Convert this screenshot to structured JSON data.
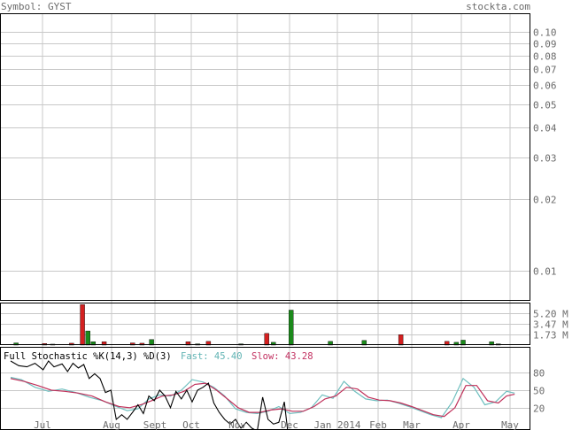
{
  "header": {
    "symbol_label": "Symbol: GYST",
    "site": "stockta.com"
  },
  "colors": {
    "grid": "#c8c8c8",
    "frame": "#000000",
    "text": "#6b6b6b",
    "fast_line": "#6fbfbf",
    "slow_line": "#c0305a",
    "k_line": "#000000",
    "vol_up": "#1b8a1b",
    "vol_down": "#d42020",
    "fast_label": "#5fb3b3",
    "slow_label": "#c23060"
  },
  "chart_data": [
    {
      "type": "line",
      "panel": "price",
      "yscale": "log",
      "ylim": [
        0.0075,
        0.12
      ],
      "y_ticks": [
        "0.10",
        "0.09",
        "0.08",
        "0.07",
        "0.06",
        "0.05",
        "0.04",
        "0.03",
        "0.02",
        "0.01"
      ],
      "x_ticks": [
        "Jul",
        "Aug",
        "Sept",
        "Oct",
        "Nov",
        "Dec",
        "Jan 2014",
        "Feb",
        "Mar",
        "Apr",
        "May"
      ],
      "grid": true
    },
    {
      "type": "bar",
      "panel": "volume",
      "y_ticks": [
        "5.20 M",
        "3.47 M",
        "1.73 M"
      ],
      "ylim": [
        0,
        6.93
      ],
      "bars": [
        {
          "x": 0.2,
          "v": 0.35,
          "dir": "up"
        },
        {
          "x": 1.25,
          "v": 0.25,
          "dir": "down"
        },
        {
          "x": 1.55,
          "v": 0.15,
          "dir": "up"
        },
        {
          "x": 2.25,
          "v": 0.3,
          "dir": "down"
        },
        {
          "x": 2.65,
          "v": 6.6,
          "dir": "down"
        },
        {
          "x": 2.85,
          "v": 2.3,
          "dir": "up"
        },
        {
          "x": 3.05,
          "v": 0.55,
          "dir": "up"
        },
        {
          "x": 3.45,
          "v": 0.55,
          "dir": "down"
        },
        {
          "x": 4.5,
          "v": 0.35,
          "dir": "down"
        },
        {
          "x": 4.85,
          "v": 0.3,
          "dir": "down"
        },
        {
          "x": 5.2,
          "v": 0.9,
          "dir": "up"
        },
        {
          "x": 6.55,
          "v": 0.55,
          "dir": "down"
        },
        {
          "x": 6.9,
          "v": 0.2,
          "dir": "up"
        },
        {
          "x": 7.3,
          "v": 0.6,
          "dir": "down"
        },
        {
          "x": 8.5,
          "v": 0.2,
          "dir": "up"
        },
        {
          "x": 9.45,
          "v": 1.9,
          "dir": "down"
        },
        {
          "x": 9.7,
          "v": 0.45,
          "dir": "up"
        },
        {
          "x": 10.35,
          "v": 5.7,
          "dir": "up"
        },
        {
          "x": 11.8,
          "v": 0.6,
          "dir": "up"
        },
        {
          "x": 13.05,
          "v": 0.75,
          "dir": "up"
        },
        {
          "x": 14.4,
          "v": 1.7,
          "dir": "down"
        },
        {
          "x": 16.1,
          "v": 0.6,
          "dir": "down"
        },
        {
          "x": 16.45,
          "v": 0.45,
          "dir": "up"
        },
        {
          "x": 16.7,
          "v": 0.8,
          "dir": "up"
        },
        {
          "x": 17.75,
          "v": 0.55,
          "dir": "up"
        },
        {
          "x": 18.0,
          "v": 0.2,
          "dir": "up"
        }
      ]
    },
    {
      "type": "line",
      "panel": "stochastic",
      "title": "Full Stochastic %K(14,3) %D(3)",
      "fast_label": "Fast: 45.40",
      "slow_label": "Slow: 43.28",
      "ylim": [
        0,
        100
      ],
      "y_ticks": [
        "80",
        "50",
        "20"
      ],
      "series": [
        {
          "id": "fast",
          "points": [
            [
              0,
              72
            ],
            [
              0.4,
              68
            ],
            [
              0.9,
              55
            ],
            [
              1.4,
              48
            ],
            [
              1.9,
              52
            ],
            [
              2.4,
              46
            ],
            [
              2.9,
              38
            ],
            [
              3.4,
              32
            ],
            [
              3.9,
              22
            ],
            [
              4.3,
              15
            ],
            [
              4.7,
              18
            ],
            [
              5.1,
              35
            ],
            [
              5.5,
              42
            ],
            [
              5.9,
              40
            ],
            [
              6.3,
              50
            ],
            [
              6.7,
              68
            ],
            [
              7.1,
              64
            ],
            [
              7.5,
              55
            ],
            [
              7.9,
              40
            ],
            [
              8.3,
              18
            ],
            [
              8.7,
              12
            ],
            [
              9.1,
              10
            ],
            [
              9.5,
              14
            ],
            [
              9.9,
              22
            ],
            [
              10.3,
              10
            ],
            [
              10.7,
              12
            ],
            [
              11.1,
              20
            ],
            [
              11.5,
              42
            ],
            [
              11.9,
              36
            ],
            [
              12.3,
              65
            ],
            [
              12.7,
              48
            ],
            [
              13.1,
              35
            ],
            [
              13.5,
              32
            ],
            [
              13.9,
              33
            ],
            [
              14.3,
              28
            ],
            [
              14.7,
              22
            ],
            [
              15.1,
              15
            ],
            [
              15.5,
              8
            ],
            [
              15.9,
              3
            ],
            [
              16.3,
              30
            ],
            [
              16.7,
              70
            ],
            [
              17.1,
              55
            ],
            [
              17.5,
              25
            ],
            [
              17.9,
              30
            ],
            [
              18.3,
              48
            ],
            [
              18.6,
              45
            ]
          ]
        },
        {
          "id": "slow",
          "points": [
            [
              0,
              70
            ],
            [
              0.5,
              65
            ],
            [
              1.0,
              58
            ],
            [
              1.5,
              50
            ],
            [
              2.0,
              48
            ],
            [
              2.5,
              45
            ],
            [
              3.0,
              40
            ],
            [
              3.5,
              30
            ],
            [
              4.0,
              22
            ],
            [
              4.4,
              20
            ],
            [
              4.8,
              25
            ],
            [
              5.2,
              32
            ],
            [
              5.6,
              40
            ],
            [
              6.0,
              42
            ],
            [
              6.4,
              48
            ],
            [
              6.8,
              60
            ],
            [
              7.2,
              62
            ],
            [
              7.6,
              50
            ],
            [
              8.0,
              35
            ],
            [
              8.4,
              20
            ],
            [
              8.8,
              12
            ],
            [
              9.2,
              12
            ],
            [
              9.6,
              16
            ],
            [
              10.0,
              18
            ],
            [
              10.4,
              14
            ],
            [
              10.8,
              14
            ],
            [
              11.2,
              22
            ],
            [
              11.6,
              35
            ],
            [
              12.0,
              40
            ],
            [
              12.4,
              55
            ],
            [
              12.8,
              52
            ],
            [
              13.2,
              38
            ],
            [
              13.6,
              33
            ],
            [
              14.0,
              32
            ],
            [
              14.4,
              28
            ],
            [
              14.8,
              22
            ],
            [
              15.2,
              15
            ],
            [
              15.6,
              8
            ],
            [
              16.0,
              5
            ],
            [
              16.4,
              20
            ],
            [
              16.8,
              58
            ],
            [
              17.2,
              58
            ],
            [
              17.6,
              32
            ],
            [
              18.0,
              28
            ],
            [
              18.3,
              40
            ],
            [
              18.6,
              43
            ]
          ]
        },
        {
          "id": "k",
          "points": [
            [
              0,
              100
            ],
            [
              0.3,
              92
            ],
            [
              0.6,
              90
            ],
            [
              0.9,
              96
            ],
            [
              1.2,
              85
            ],
            [
              1.4,
              100
            ],
            [
              1.6,
              90
            ],
            [
              1.9,
              95
            ],
            [
              2.1,
              82
            ],
            [
              2.3,
              96
            ],
            [
              2.5,
              88
            ],
            [
              2.7,
              94
            ],
            [
              2.9,
              70
            ],
            [
              3.1,
              78
            ],
            [
              3.3,
              70
            ],
            [
              3.5,
              46
            ],
            [
              3.7,
              50
            ],
            [
              3.9,
              0
            ],
            [
              4.1,
              8
            ],
            [
              4.3,
              0
            ],
            [
              4.5,
              12
            ],
            [
              4.7,
              25
            ],
            [
              4.9,
              10
            ],
            [
              5.1,
              40
            ],
            [
              5.3,
              32
            ],
            [
              5.5,
              50
            ],
            [
              5.7,
              40
            ],
            [
              5.9,
              20
            ],
            [
              6.1,
              48
            ],
            [
              6.3,
              35
            ],
            [
              6.5,
              50
            ],
            [
              6.7,
              30
            ],
            [
              6.9,
              50
            ],
            [
              7.1,
              55
            ],
            [
              7.3,
              62
            ],
            [
              7.5,
              28
            ],
            [
              7.7,
              12
            ],
            [
              7.9,
              0
            ],
            [
              8.1,
              -8
            ],
            [
              8.3,
              0
            ],
            [
              8.5,
              -15
            ],
            [
              8.7,
              -5
            ],
            [
              8.9,
              -15
            ],
            [
              9.1,
              -20
            ],
            [
              9.3,
              38
            ],
            [
              9.5,
              0
            ],
            [
              9.7,
              -8
            ],
            [
              9.9,
              -5
            ],
            [
              10.1,
              30
            ],
            [
              10.3,
              -50
            ]
          ]
        }
      ]
    }
  ]
}
